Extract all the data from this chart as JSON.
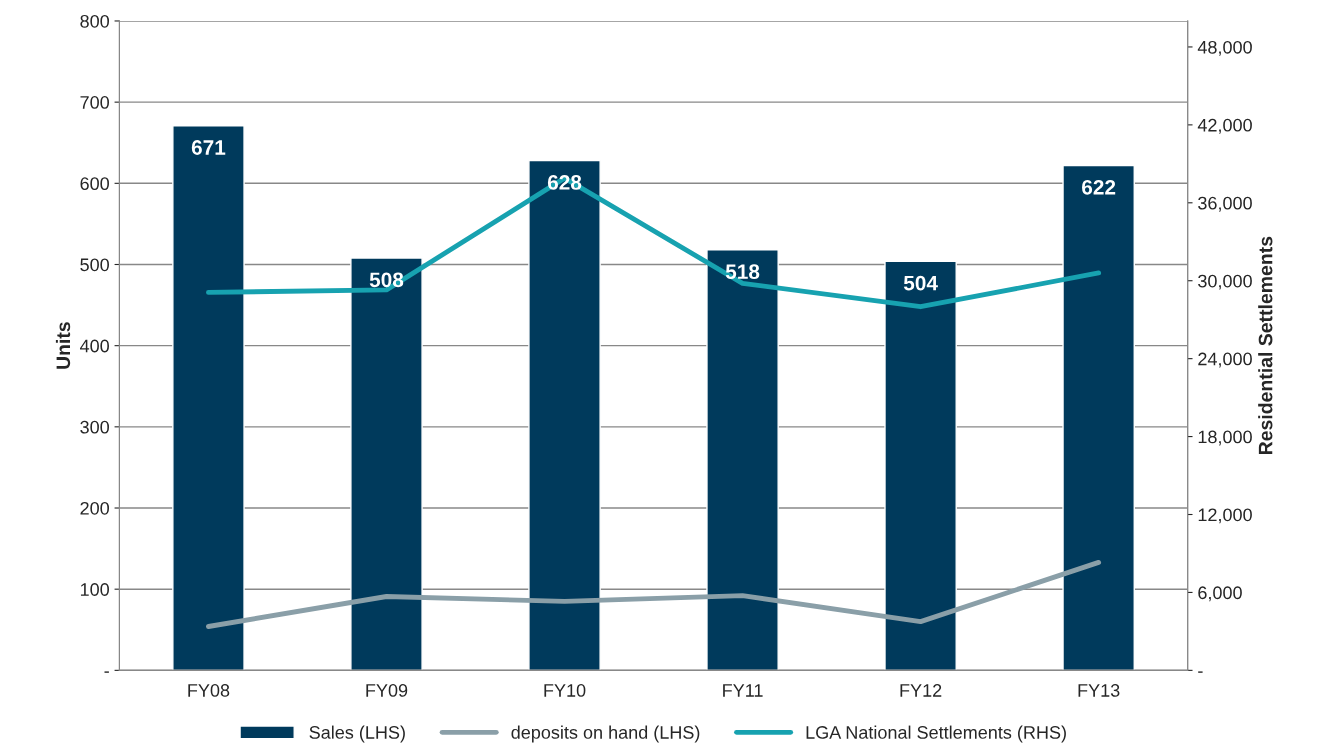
{
  "chart_data": {
    "type": "bar",
    "categories": [
      "FY08",
      "FY09",
      "FY10",
      "FY11",
      "FY12",
      "FY13"
    ],
    "ylabel": "Units",
    "y2label": "Residential Settlements",
    "ylim": [
      0,
      800
    ],
    "yticks": [
      {
        "value": 0,
        "label": "-"
      },
      100,
      200,
      300,
      400,
      500,
      600,
      700,
      800
    ],
    "y2lim": [
      0,
      50000
    ],
    "y2ticks": [
      {
        "value": 0,
        "label": "-"
      },
      {
        "value": 6000,
        "label": "6,000"
      },
      {
        "value": 12000,
        "label": "12,000"
      },
      {
        "value": 18000,
        "label": "18,000"
      },
      {
        "value": 24000,
        "label": "24,000"
      },
      {
        "value": 30000,
        "label": "30,000"
      },
      {
        "value": 36000,
        "label": "36,000"
      },
      {
        "value": 42000,
        "label": "42,000"
      },
      {
        "value": 48000,
        "label": "48,000"
      }
    ],
    "grid": "y",
    "legend": "bottom",
    "series": [
      {
        "name": "Sales (LHS)",
        "color": "#003a5c",
        "values": [
          671,
          508,
          628,
          518,
          504,
          622
        ],
        "data_labels": true
      },
      {
        "name": "deposits on hand (LHS)",
        "type": "line",
        "color": "#8a9fa8",
        "values": [
          54,
          91,
          85,
          92,
          60,
          133
        ]
      },
      {
        "name": "LGA National Settlements (RHS)",
        "type": "line",
        "axis": "y2",
        "color": "#17a2b0",
        "values": [
          29100,
          29300,
          37900,
          29800,
          28000,
          30600
        ]
      }
    ]
  }
}
